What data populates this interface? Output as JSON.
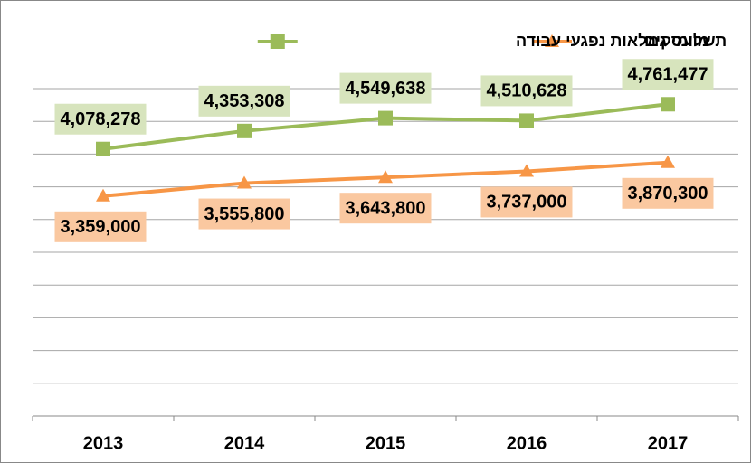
{
  "chart_data": {
    "type": "line",
    "categories": [
      "2013",
      "2014",
      "2015",
      "2016",
      "2017"
    ],
    "series": [
      {
        "name": "מועסקים",
        "color": "#f79646",
        "marker": "triangle",
        "label_color": "#fac8a0",
        "values": [
          3359000,
          3555800,
          3643800,
          3737000,
          3870300
        ],
        "value_labels": [
          "3,359,000",
          "3,555,800",
          "3,643,800",
          "3,737,000",
          "3,870,300"
        ]
      },
      {
        "name": "תשלומי גמלאות נפגעי עבודה",
        "color": "#9bbb59",
        "marker": "square",
        "label_color": "#d7e4bd",
        "values": [
          4078278,
          4353308,
          4549638,
          4510628,
          4761477
        ],
        "value_labels": [
          "4,078,278",
          "4,353,308",
          "4,549,638",
          "4,510,628",
          "4,761,477"
        ]
      }
    ],
    "ylim": [
      0,
      5000000
    ],
    "yticks": [
      0,
      500000,
      1000000,
      1500000,
      2000000,
      2500000,
      3000000,
      3500000,
      4000000,
      4500000,
      5000000
    ],
    "show_ytick_labels": false,
    "grid": true,
    "legend": "top"
  }
}
